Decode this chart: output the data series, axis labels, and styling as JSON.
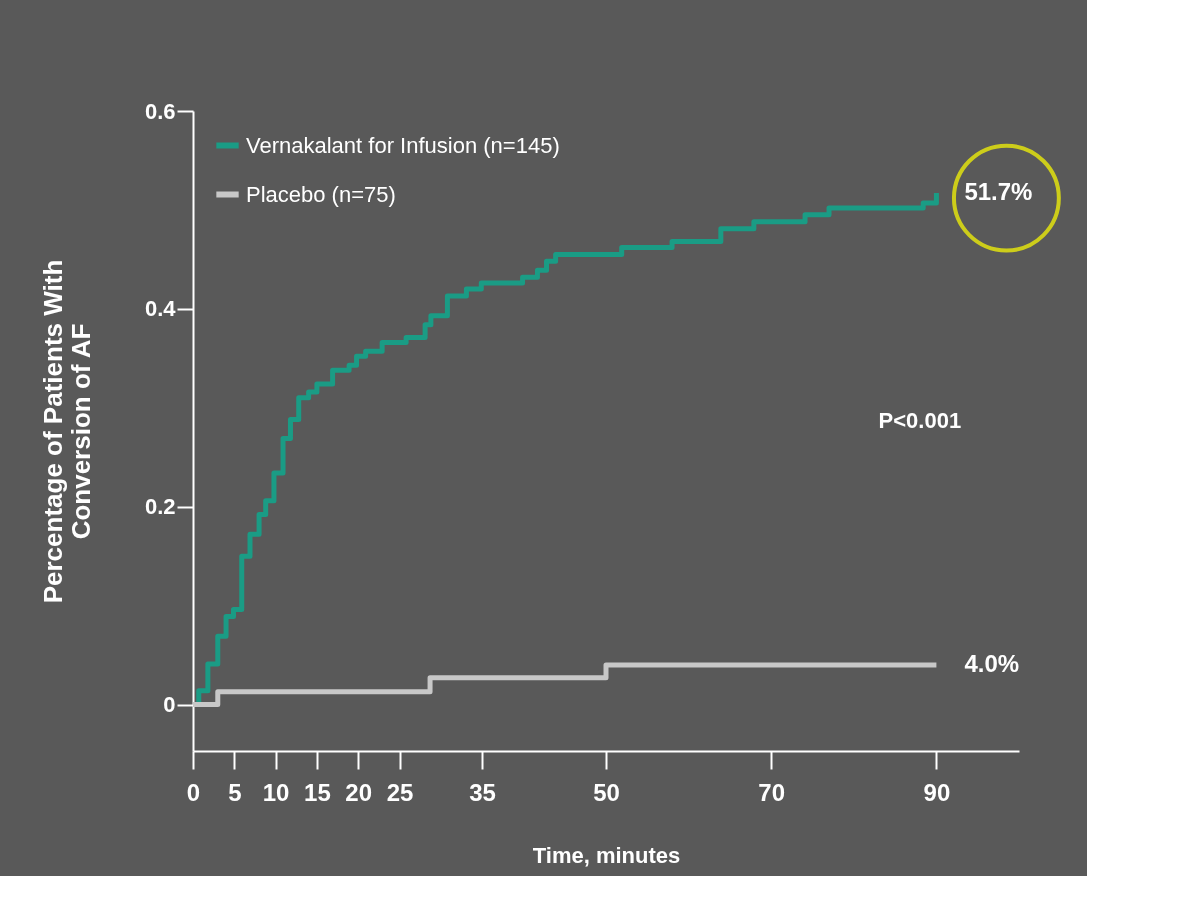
{
  "chart_data": {
    "type": "step",
    "xlabel": "Time, minutes",
    "ylabel": "Percentage of Patients With\nConversion of AF",
    "xlim": [
      0,
      100
    ],
    "ylim": [
      -0.047,
      0.6
    ],
    "xticks": [
      0,
      5,
      10,
      15,
      20,
      25,
      35,
      50,
      70,
      90
    ],
    "yticks": [
      0,
      0.2,
      0.4,
      0.6
    ],
    "grid": false,
    "legend": "top left",
    "marker": "none",
    "line_style": "solid",
    "series": [
      {
        "name": "Vernakalant for Infusion (n=145)",
        "color": "#1a9c85",
        "x": [
          0,
          0.7,
          1.8,
          3.0,
          4.0,
          4.9,
          5.9,
          6.9,
          8.0,
          8.8,
          9.8,
          10.9,
          11.8,
          12.8,
          14.0,
          15.0,
          16.9,
          18.9,
          19.8,
          20.9,
          22.9,
          25.8,
          28.1,
          28.8,
          30.8,
          33.1,
          34.9,
          39.9,
          41.7,
          42.8,
          43.9,
          51.9,
          58.0,
          63.9,
          67.9,
          74.1,
          77.0,
          88.4,
          90
        ],
        "values": [
          0,
          0.014,
          0.041,
          0.069,
          0.089,
          0.096,
          0.15,
          0.172,
          0.192,
          0.206,
          0.234,
          0.269,
          0.288,
          0.31,
          0.316,
          0.324,
          0.338,
          0.343,
          0.352,
          0.357,
          0.366,
          0.371,
          0.384,
          0.393,
          0.413,
          0.42,
          0.426,
          0.432,
          0.439,
          0.448,
          0.455,
          0.462,
          0.468,
          0.481,
          0.488,
          0.495,
          0.502,
          0.507,
          0.517
        ]
      },
      {
        "name": "Placebo (n=75)",
        "color": "#c8c8c8",
        "x": [
          0,
          3.0,
          28.7,
          50,
          90
        ],
        "values": [
          0,
          0.013,
          0.027,
          0.04,
          0.04
        ]
      }
    ],
    "annotations": [
      {
        "text": "51.7%",
        "x": 90,
        "y": 0.517
      },
      {
        "text": "4.0%",
        "x": 90,
        "y": 0.04
      },
      "P<0.001"
    ]
  }
}
